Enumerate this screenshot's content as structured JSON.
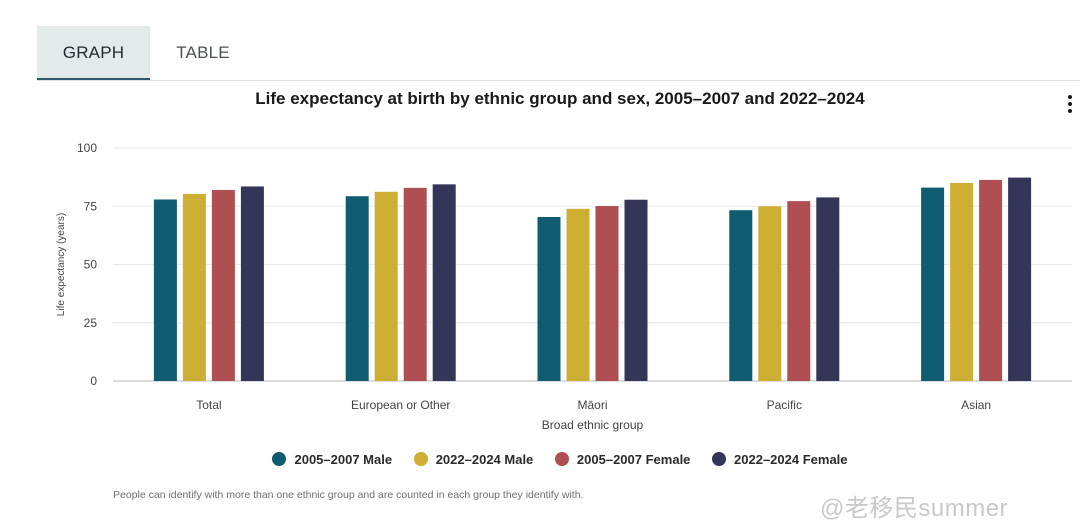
{
  "tabs": [
    {
      "label": "GRAPH",
      "active": true
    },
    {
      "label": "TABLE",
      "active": false
    }
  ],
  "menu_icon": "more-vertical-icon",
  "chart_data": {
    "type": "bar",
    "title": "Life expectancy at birth by ethnic group and sex, 2005–2007 and 2022–2024",
    "xlabel": "Broad ethnic group",
    "ylabel": "Life expectancy (years)",
    "ylim": [
      0,
      100
    ],
    "yticks": [
      0,
      25,
      50,
      75,
      100
    ],
    "grid": true,
    "legend_position": "bottom",
    "categories": [
      "Total",
      "European or Other",
      "Māori",
      "Pacific",
      "Asian"
    ],
    "series": [
      {
        "name": "2005–2007 Male",
        "color": "#0f5b70",
        "values": [
          77.9,
          79.3,
          70.4,
          73.3,
          83.0
        ]
      },
      {
        "name": "2022–2024 Male",
        "color": "#cfae34",
        "values": [
          80.3,
          81.2,
          73.9,
          75.0,
          85.0
        ]
      },
      {
        "name": "2005–2007 Female",
        "color": "#b04f52",
        "values": [
          82.0,
          82.9,
          75.1,
          77.2,
          86.3
        ]
      },
      {
        "name": "2022–2024 Female",
        "color": "#343558",
        "values": [
          83.5,
          84.4,
          77.8,
          78.8,
          87.3
        ]
      }
    ]
  },
  "footnote": "People can identify with more than one ethnic group and are counted in each group they identify with.",
  "watermark": "@老移民summer"
}
